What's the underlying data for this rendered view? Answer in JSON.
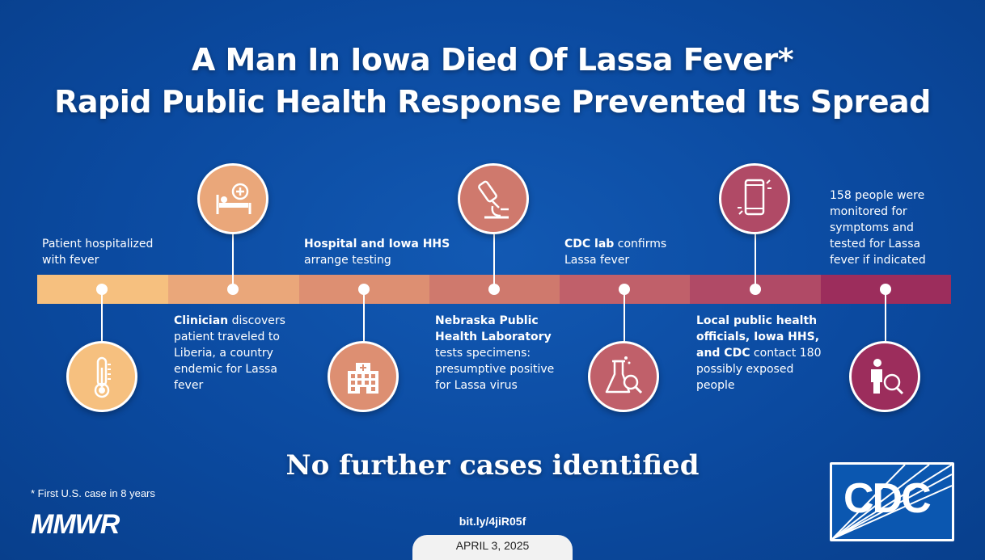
{
  "title": {
    "line1": "A Man In Iowa Died Of Lassa Fever*",
    "line2": "Rapid Public Health Response Prevented Its Spread"
  },
  "colors": {
    "background": "#0b4aa0",
    "segments": [
      "#f6c07f",
      "#eaa77a",
      "#dd8f72",
      "#cf796d",
      "#c0606a",
      "#b04a66",
      "#9c2d5c"
    ]
  },
  "timeline": [
    {
      "icon": "thermometer-icon",
      "text": "Patient hospitalized with fever"
    },
    {
      "icon": "hospital-bed-icon",
      "bold": "Clinician",
      "text": " discovers patient traveled to Liberia, a country endemic for Lassa fever"
    },
    {
      "icon": "hospital-building-icon",
      "bold": "Hospital and Iowa HHS",
      "text": " arrange testing"
    },
    {
      "icon": "microscope-icon",
      "bold": "Nebraska Public Health Laboratory",
      "text": " tests specimens: presumptive positive for Lassa virus"
    },
    {
      "icon": "lab-flask-search-icon",
      "bold": "CDC lab",
      "text": " confirms Lassa fever"
    },
    {
      "icon": "mobile-phone-icon",
      "bold": "Local public health officials, Iowa HHS, and CDC",
      "text": " contact 180 possibly exposed people"
    },
    {
      "icon": "person-search-icon",
      "text": "158 people were monitored for symptoms and tested for Lassa fever if indicated"
    }
  ],
  "bottom": {
    "headline": "No further cases identified"
  },
  "footer": {
    "footnote": "* First U.S. case in 8 years",
    "mmwr": "MMWR",
    "link": "bit.ly/4jiR05f",
    "date": "APRIL 3, 2025",
    "cdc": "CDC"
  }
}
